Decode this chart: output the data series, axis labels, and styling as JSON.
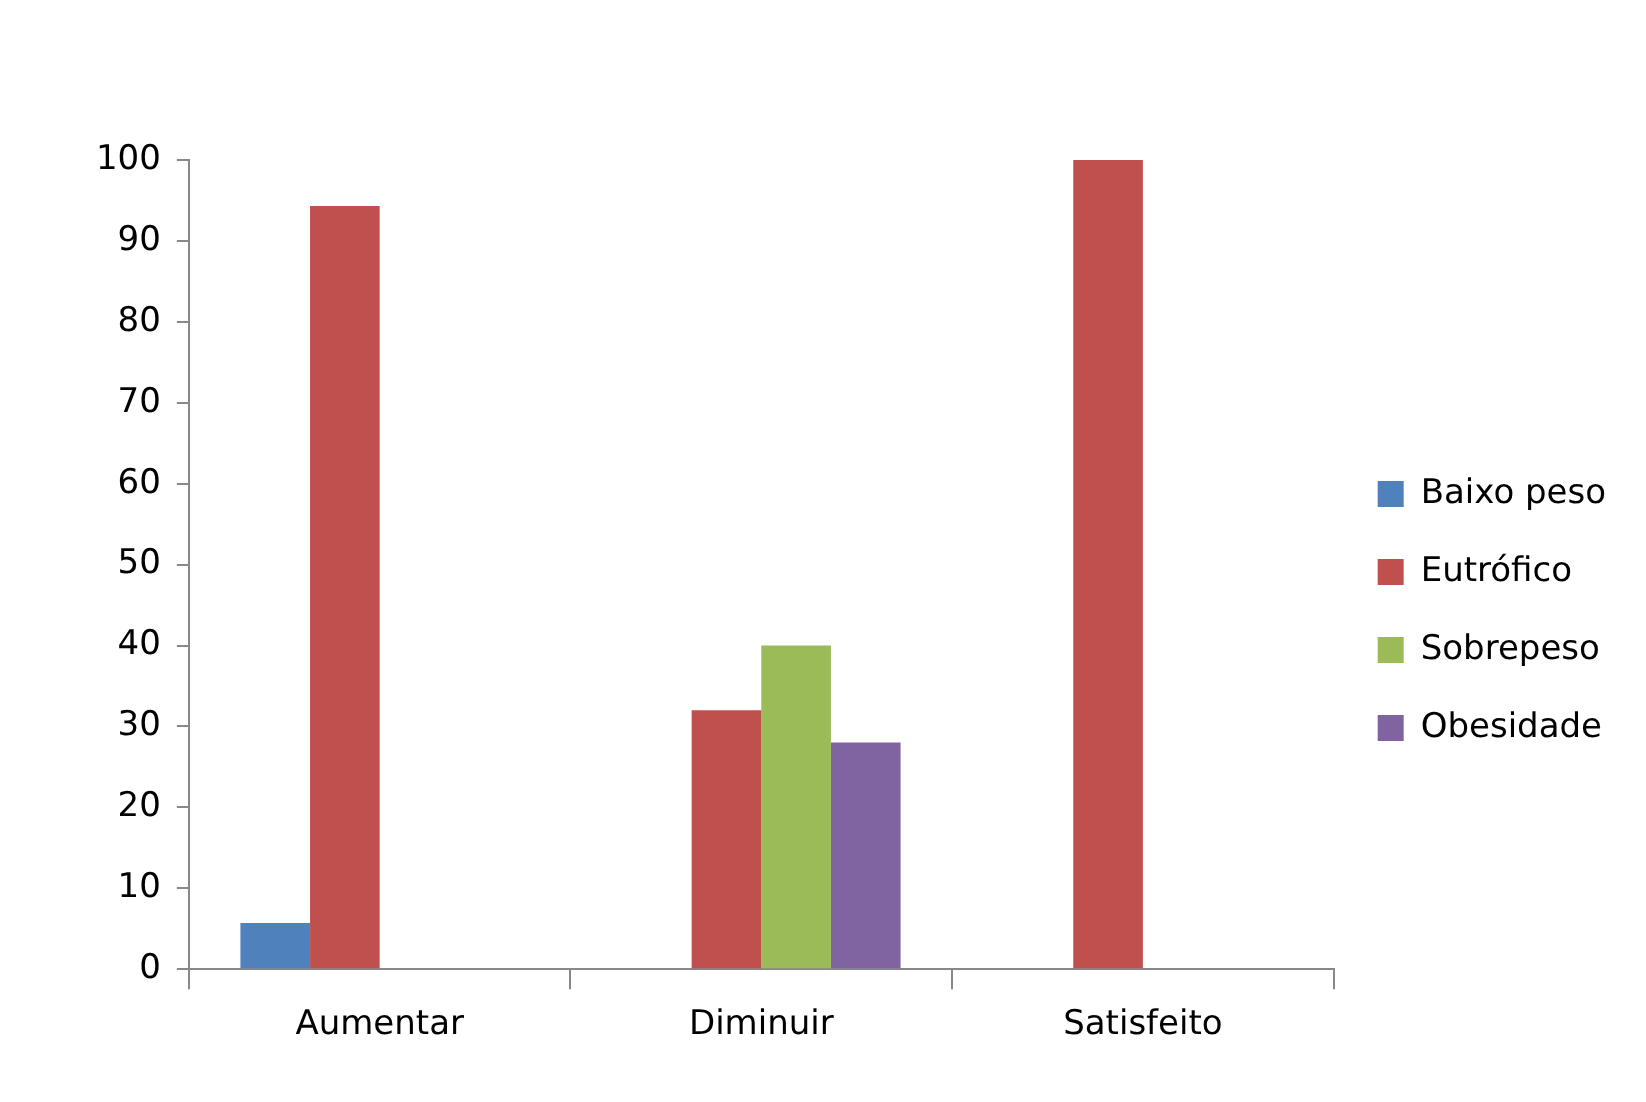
{
  "chart_data": {
    "type": "bar",
    "categories": [
      "Aumentar",
      "Diminuir",
      "Satisfeito"
    ],
    "series": [
      {
        "name": "Baixo peso",
        "color": "#4f81bd",
        "values": [
          5.7,
          null,
          null
        ]
      },
      {
        "name": "Eutrófico",
        "color": "#c0504d",
        "values": [
          94.3,
          32,
          100
        ]
      },
      {
        "name": "Sobrepeso",
        "color": "#9bbb59",
        "values": [
          null,
          40,
          null
        ]
      },
      {
        "name": "Obesidade",
        "color": "#8064a2",
        "values": [
          null,
          28,
          null
        ]
      }
    ],
    "ylim": [
      0,
      100
    ],
    "yticks": [
      0,
      10,
      20,
      30,
      40,
      50,
      60,
      70,
      80,
      90,
      100
    ],
    "legend": "right"
  }
}
